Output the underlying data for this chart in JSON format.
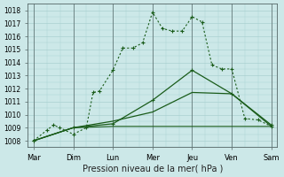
{
  "background_color": "#cce8e8",
  "grid_color": "#aad0d0",
  "line_color": "#1a5c1a",
  "x_labels": [
    "Mar",
    "Dim",
    "Lun",
    "Mer",
    "Jeu",
    "Ven",
    "Sam"
  ],
  "x_positions": [
    0,
    1,
    2,
    3,
    4,
    5,
    6
  ],
  "ylim": [
    1007.5,
    1018.5
  ],
  "yticks": [
    1008,
    1009,
    1010,
    1011,
    1012,
    1013,
    1014,
    1015,
    1016,
    1017,
    1018
  ],
  "xlabel": "Pression niveau de la mer( hPa )",
  "line1_x": [
    0,
    0.33,
    0.5,
    0.66,
    1.0,
    1.33,
    1.5,
    1.66,
    2.0,
    2.25,
    2.5,
    2.75,
    3.0,
    3.25,
    3.5,
    3.75,
    4.0,
    4.25,
    4.5,
    4.75,
    5.0,
    5.33,
    5.66,
    6.0
  ],
  "line1_y": [
    1008.0,
    1008.8,
    1009.2,
    1009.0,
    1008.5,
    1009.0,
    1011.7,
    1011.8,
    1013.4,
    1015.1,
    1015.1,
    1015.5,
    1017.85,
    1016.6,
    1016.4,
    1016.4,
    1017.5,
    1017.1,
    1013.8,
    1013.5,
    1013.5,
    1009.7,
    1009.6,
    1009.1
  ],
  "line2_x": [
    0,
    1,
    2,
    3,
    4,
    5,
    6
  ],
  "line2_y": [
    1008.0,
    1009.0,
    1009.3,
    1011.1,
    1013.4,
    1011.6,
    1009.2
  ],
  "line3_x": [
    0,
    1,
    2,
    3,
    4,
    5,
    6
  ],
  "line3_y": [
    1008.0,
    1009.0,
    1009.5,
    1010.2,
    1011.7,
    1011.6,
    1009.1
  ],
  "line4_x": [
    0,
    1,
    2,
    3,
    4,
    5,
    6
  ],
  "line4_y": [
    1008.0,
    1009.0,
    1009.1,
    1009.1,
    1009.1,
    1009.1,
    1009.1
  ]
}
